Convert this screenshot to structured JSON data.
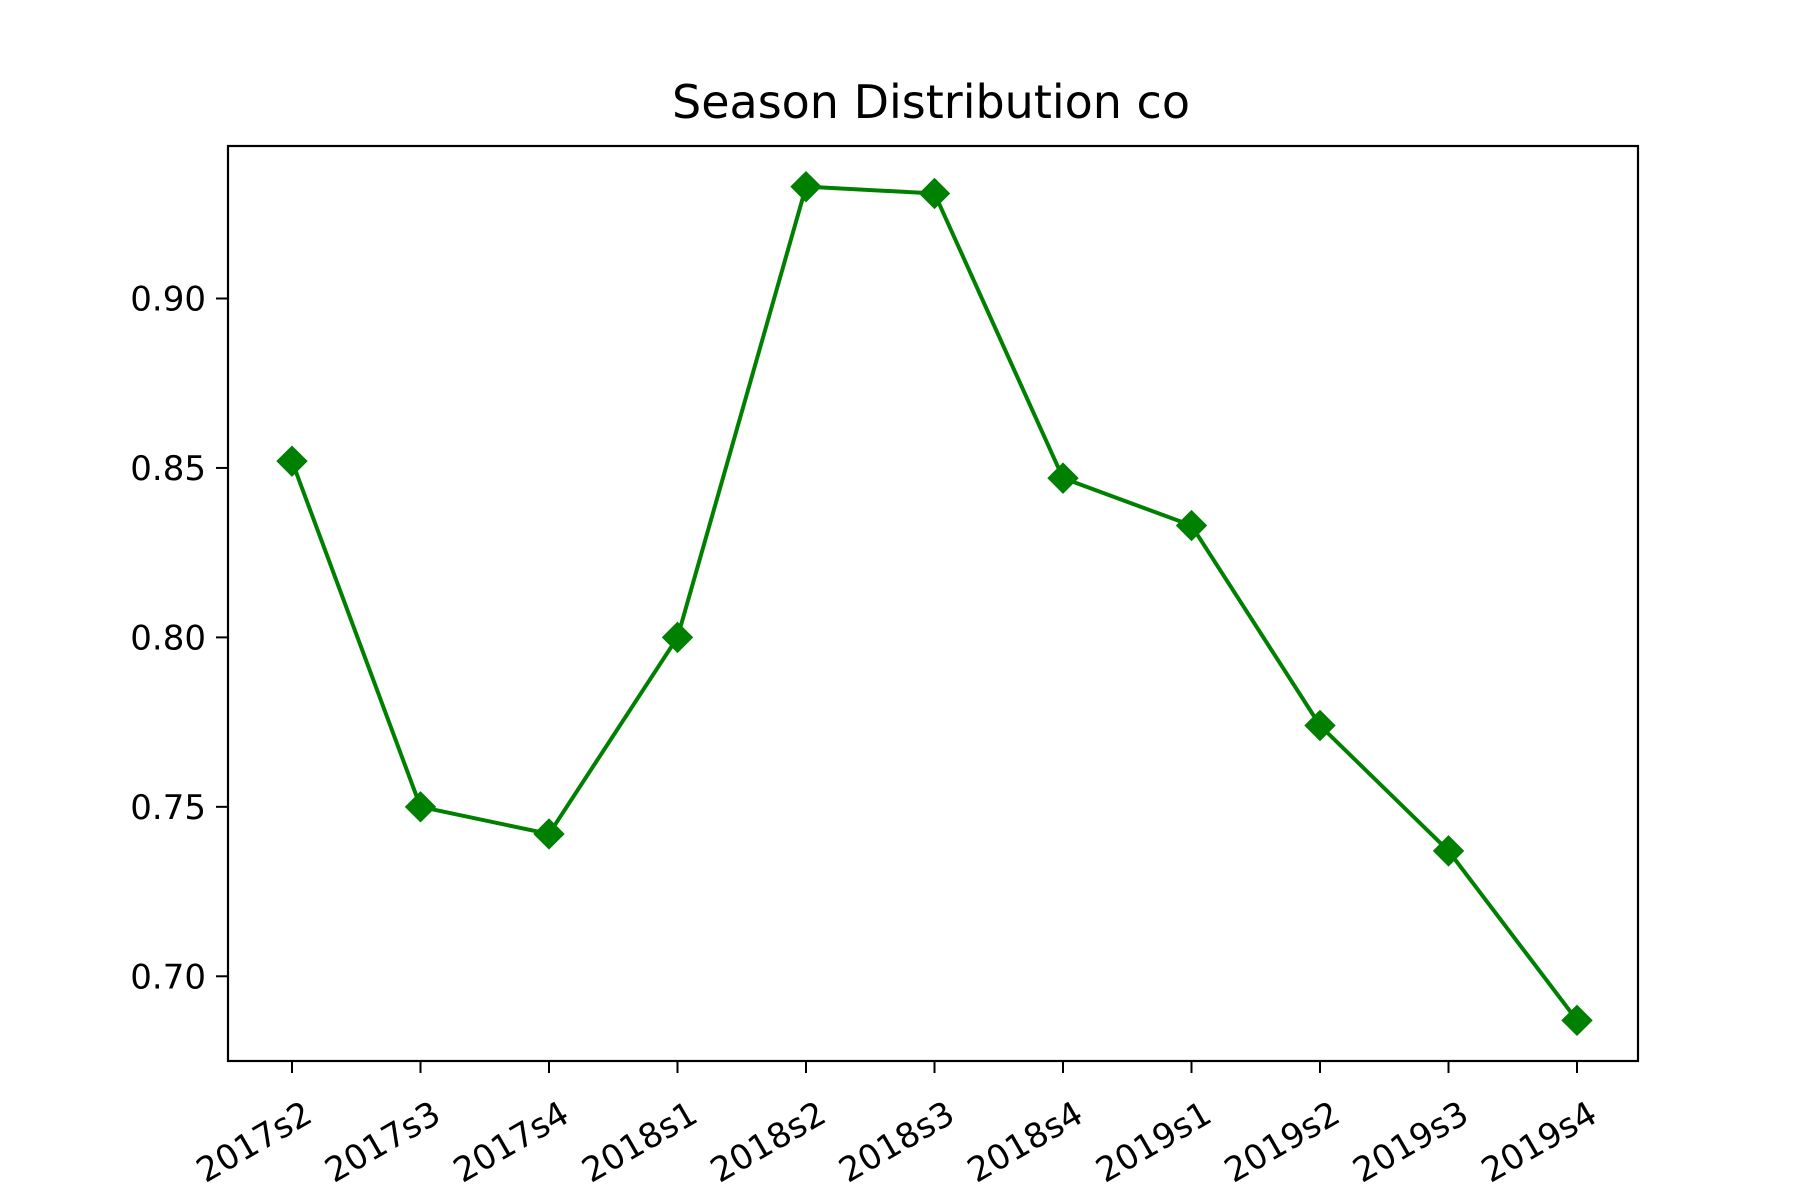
{
  "chart_data": {
    "type": "line",
    "title": "Season Distribution co",
    "xlabel": "",
    "ylabel": "",
    "categories": [
      "2017s2",
      "2017s3",
      "2017s4",
      "2018s1",
      "2018s2",
      "2018s3",
      "2018s4",
      "2019s1",
      "2019s2",
      "2019s3",
      "2019s4"
    ],
    "series": [
      {
        "values": [
          0.852,
          0.75,
          0.742,
          0.8,
          0.933,
          0.931,
          0.847,
          0.833,
          0.774,
          0.737,
          0.687
        ],
        "color": "#008000",
        "marker": "diamond"
      }
    ],
    "ylim": [
      0.675,
      0.945
    ],
    "yticks": [
      0.7,
      0.75,
      0.8,
      0.85,
      0.9
    ],
    "ytick_labels": [
      "0.70",
      "0.75",
      "0.80",
      "0.85",
      "0.90"
    ],
    "grid": false,
    "legend": "none"
  }
}
